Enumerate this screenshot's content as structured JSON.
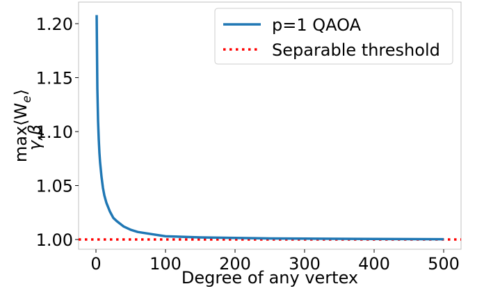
{
  "chart_data": {
    "type": "line",
    "title": "",
    "xlabel": "Degree of any vertex",
    "ylabel": {
      "main": "max⟨W",
      "subscript_e": "e",
      "close": "⟩",
      "under": "γ,β"
    },
    "xlim": [
      -25,
      525
    ],
    "ylim": [
      0.991,
      1.22
    ],
    "xticks": [
      0,
      100,
      200,
      300,
      400,
      500
    ],
    "xtick_labels": [
      "0",
      "100",
      "200",
      "300",
      "400",
      "500"
    ],
    "yticks": [
      1.0,
      1.05,
      1.1,
      1.15,
      1.2
    ],
    "ytick_labels": [
      "1.00",
      "1.05",
      "1.10",
      "1.15",
      "1.20"
    ],
    "grid": false,
    "legend_position": "top-right",
    "series": [
      {
        "name": "p=1 QAOA",
        "color": "#1f77b4",
        "style": "solid",
        "x": [
          1,
          2,
          3,
          4,
          5,
          6,
          8,
          10,
          12,
          15,
          20,
          25,
          30,
          40,
          50,
          60,
          80,
          100,
          150,
          200,
          250,
          300,
          400,
          500
        ],
        "y": [
          1.208,
          1.14,
          1.11,
          1.093,
          1.08,
          1.071,
          1.058,
          1.048,
          1.041,
          1.034,
          1.026,
          1.02,
          1.017,
          1.012,
          1.009,
          1.007,
          1.005,
          1.003,
          1.002,
          1.0015,
          1.001,
          1.0008,
          1.0005,
          1.0003
        ]
      },
      {
        "name": "Separable threshold",
        "color": "#ff0000",
        "style": "dotted",
        "y_constant": 1.0
      }
    ]
  }
}
